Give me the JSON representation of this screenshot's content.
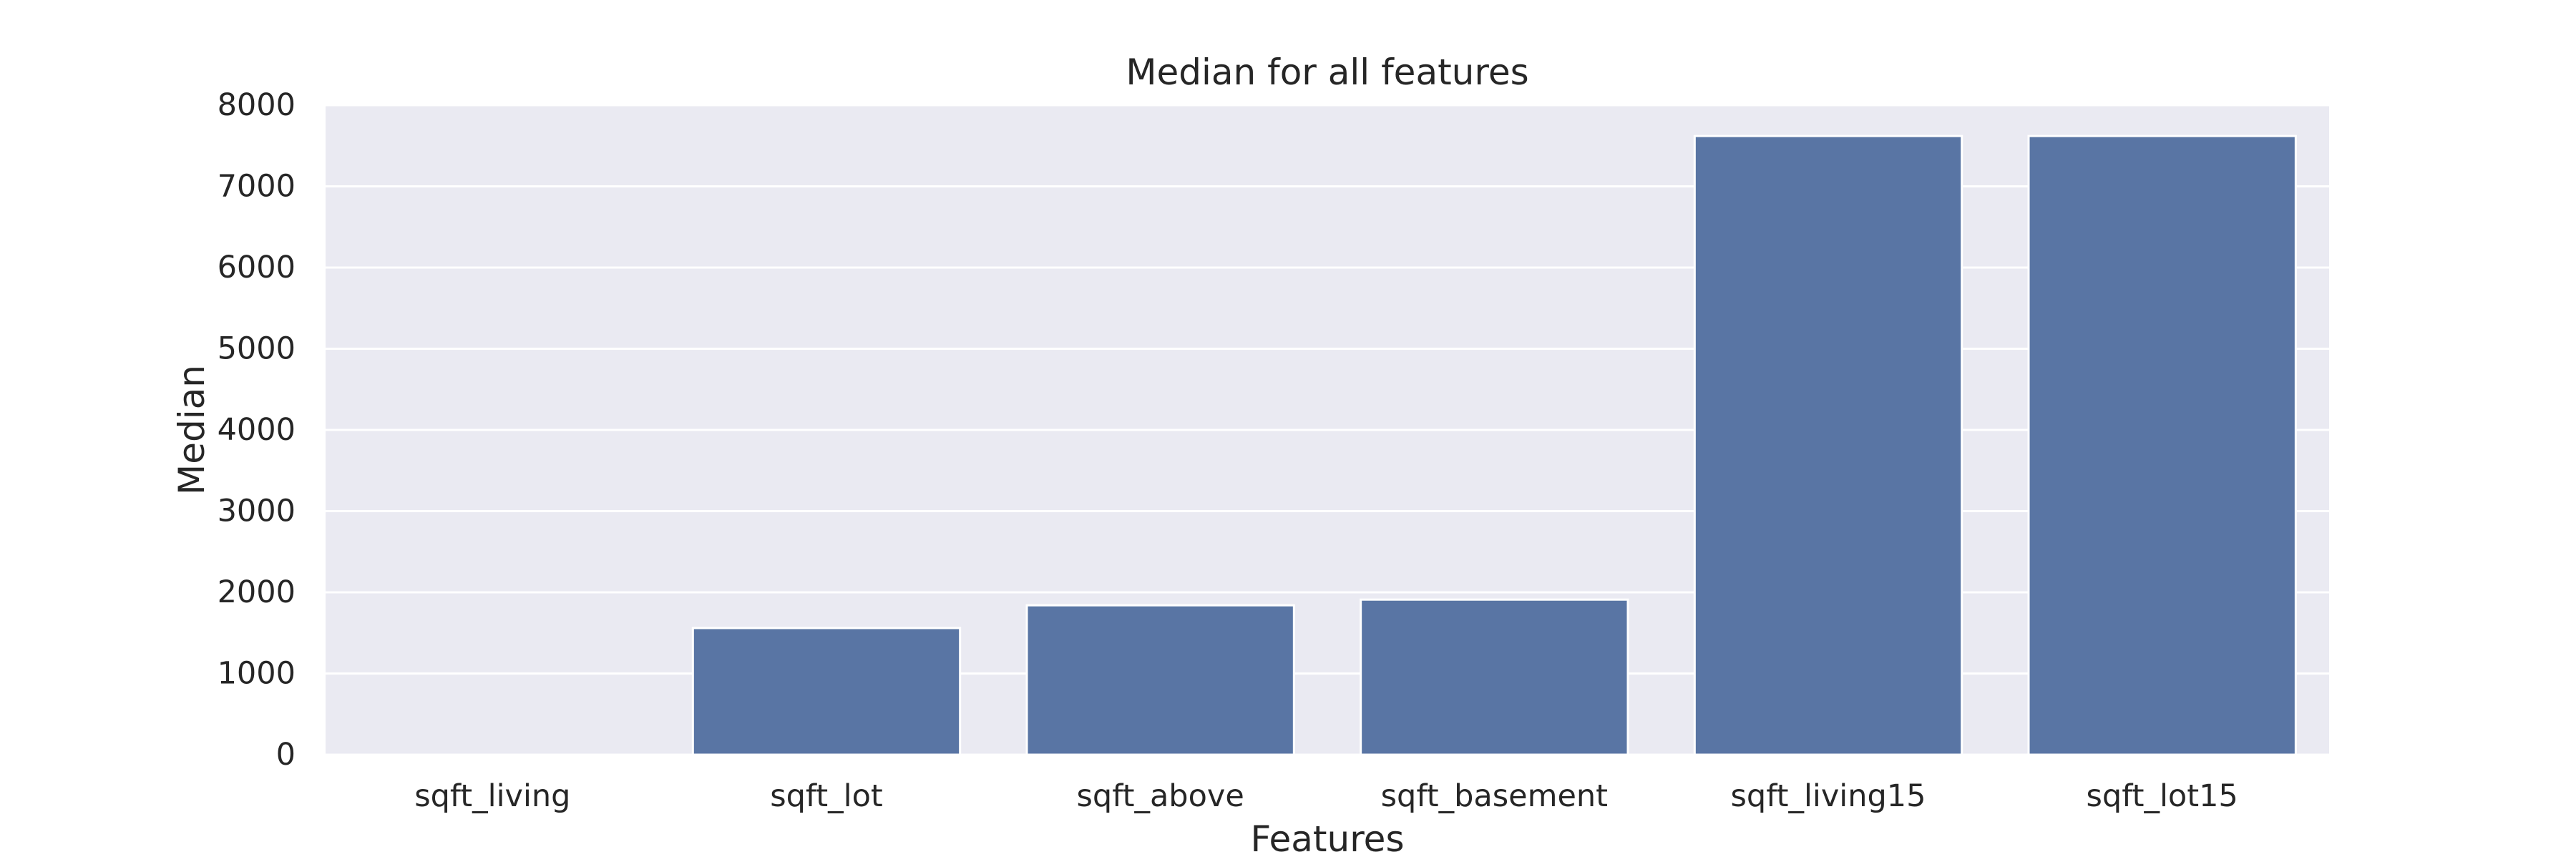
{
  "chart_data": {
    "type": "bar",
    "title": "Median for all features",
    "xlabel": "Features",
    "ylabel": "Median",
    "categories": [
      "sqft_living",
      "sqft_lot",
      "sqft_above",
      "sqft_basement",
      "sqft_living15",
      "sqft_lot15"
    ],
    "values": [
      0,
      1560,
      1840,
      1910,
      7620,
      7620
    ],
    "ylim": [
      0,
      8000
    ],
    "yticks": [
      0,
      1000,
      2000,
      3000,
      4000,
      5000,
      6000,
      7000,
      8000
    ],
    "grid": true,
    "legend": "none",
    "colors": {
      "bar": "#5975A4",
      "plot_background": "#EAEAF2",
      "grid": "#FFFFFF",
      "text": "#262626"
    }
  }
}
